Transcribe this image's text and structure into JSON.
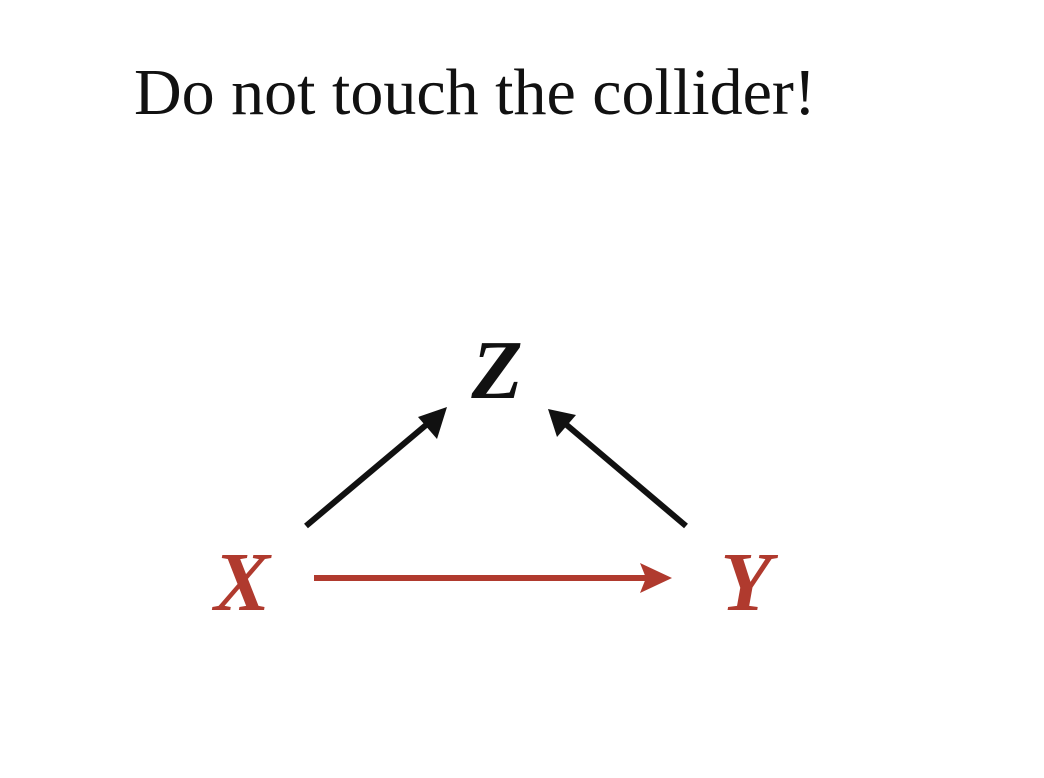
{
  "title": "Do not touch the collider!",
  "colors": {
    "text": "#111111",
    "highlight": "#b03a2e",
    "edge_default": "#111111"
  },
  "nodes": [
    {
      "id": "Z",
      "label": "Z",
      "color": "#111111"
    },
    {
      "id": "X",
      "label": "X",
      "color": "#b03a2e"
    },
    {
      "id": "Y",
      "label": "Y",
      "color": "#b03a2e"
    }
  ],
  "edges": [
    {
      "from": "X",
      "to": "Z",
      "color": "#111111"
    },
    {
      "from": "Y",
      "to": "Z",
      "color": "#111111"
    },
    {
      "from": "X",
      "to": "Y",
      "color": "#b03a2e"
    }
  ]
}
